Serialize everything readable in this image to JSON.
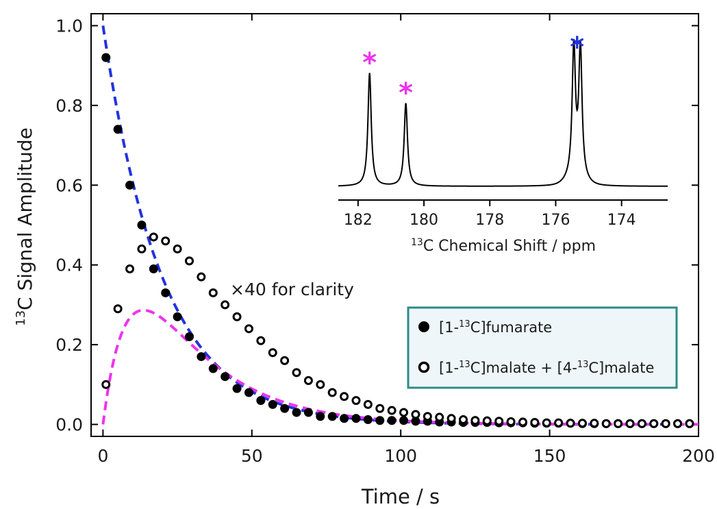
{
  "chart_data": [
    {
      "type": "scatter",
      "xlabel": "Time / s",
      "ylabel_sup": "13",
      "ylabel_text": "C Signal Amplitude",
      "xlim": [
        -4,
        200
      ],
      "ylim": [
        -0.03,
        1.03
      ],
      "xticks": [
        0,
        50,
        100,
        150,
        200
      ],
      "yticks": [
        0.0,
        0.2,
        0.4,
        0.6,
        0.8,
        1.0
      ],
      "ytick_labels": [
        "0.0",
        "0.2",
        "0.4",
        "0.6",
        "0.8",
        "1.0"
      ],
      "annotation": "×40 for clarity",
      "legend": {
        "placement": "center-right",
        "border_color": "#2e8a8a",
        "background": "#eef6fa",
        "entries": [
          {
            "marker": "filled",
            "parts": [
              "[1-",
              "13",
              "C]fumarate"
            ]
          },
          {
            "marker": "open",
            "parts": [
              "[1-",
              "13",
              "C]malate + [4-",
              "13",
              "C]malate"
            ]
          }
        ]
      },
      "series": [
        {
          "marker": "filled-circle",
          "color": "#000000",
          "x": [
            1,
            5,
            9,
            13,
            17,
            21,
            25,
            29,
            33,
            37,
            41,
            45,
            49,
            53,
            57,
            61,
            65,
            69,
            73,
            77,
            81,
            85,
            89,
            93,
            97,
            101,
            105,
            109,
            113,
            117,
            121,
            125,
            129,
            133,
            137,
            141,
            145,
            149,
            153,
            157,
            161,
            165,
            169,
            173,
            177,
            181,
            185,
            189,
            193,
            197
          ],
          "y": [
            0.92,
            0.74,
            0.6,
            0.5,
            0.39,
            0.33,
            0.27,
            0.22,
            0.17,
            0.14,
            0.12,
            0.09,
            0.08,
            0.06,
            0.05,
            0.04,
            0.03,
            0.03,
            0.02,
            0.02,
            0.015,
            0.015,
            0.012,
            0.01,
            0.01,
            0.01,
            0.008,
            0.008,
            0.006,
            0.006,
            0.005,
            0.005,
            0.005,
            0.004,
            0.004,
            0.004,
            0.003,
            0.003,
            0.003,
            0.003,
            0.002,
            0.002,
            0.002,
            0.002,
            0.002,
            0.002,
            0.002,
            0.002,
            0.002,
            0.002
          ]
        },
        {
          "marker": "open-circle",
          "color": "#000000",
          "x": [
            1,
            5,
            9,
            13,
            17,
            21,
            25,
            29,
            33,
            37,
            41,
            45,
            49,
            53,
            57,
            61,
            65,
            69,
            73,
            77,
            81,
            85,
            89,
            93,
            97,
            101,
            105,
            109,
            113,
            117,
            121,
            125,
            129,
            133,
            137,
            141,
            145,
            149,
            153,
            157,
            161,
            165,
            169,
            173,
            177,
            181,
            185,
            189,
            193,
            197
          ],
          "y": [
            0.1,
            0.29,
            0.39,
            0.44,
            0.47,
            0.46,
            0.44,
            0.41,
            0.37,
            0.33,
            0.3,
            0.27,
            0.24,
            0.21,
            0.18,
            0.16,
            0.13,
            0.11,
            0.1,
            0.08,
            0.07,
            0.06,
            0.05,
            0.04,
            0.035,
            0.03,
            0.025,
            0.02,
            0.018,
            0.015,
            0.012,
            0.01,
            0.009,
            0.008,
            0.007,
            0.006,
            0.005,
            0.004,
            0.004,
            0.003,
            0.003,
            0.003,
            0.002,
            0.002,
            0.002,
            0.002,
            0.002,
            0.002,
            0.002,
            0.002
          ]
        }
      ],
      "fits": [
        {
          "style": "dashed",
          "color": "#2233dd",
          "model": "exp_decay",
          "a": 1.0,
          "tau": 20
        },
        {
          "style": "dashed",
          "color": "#ee33ee",
          "model": "biexp",
          "a": 0.9,
          "tau1": 22,
          "tau2": 9
        }
      ]
    },
    {
      "type": "line",
      "xlabel_sup": "13",
      "xlabel_text": "C Chemical Shift / ppm",
      "xlim": [
        182.6,
        172.6
      ],
      "x_reversed": true,
      "xticks": [
        182,
        180,
        178,
        176,
        174
      ],
      "baseline": 0.07,
      "peaks": [
        {
          "center": 181.65,
          "height": 0.86,
          "width": 0.06,
          "star_color": "#ee33ee"
        },
        {
          "center": 180.55,
          "height": 0.63,
          "width": 0.06,
          "star_color": "#ee33ee"
        },
        {
          "center": 175.45,
          "height": 0.98,
          "width": 0.06,
          "star_color": "#2233dd"
        },
        {
          "center": 175.25,
          "height": 0.98,
          "width": 0.06
        }
      ],
      "star_label": "*",
      "line_color": "#000000"
    }
  ]
}
